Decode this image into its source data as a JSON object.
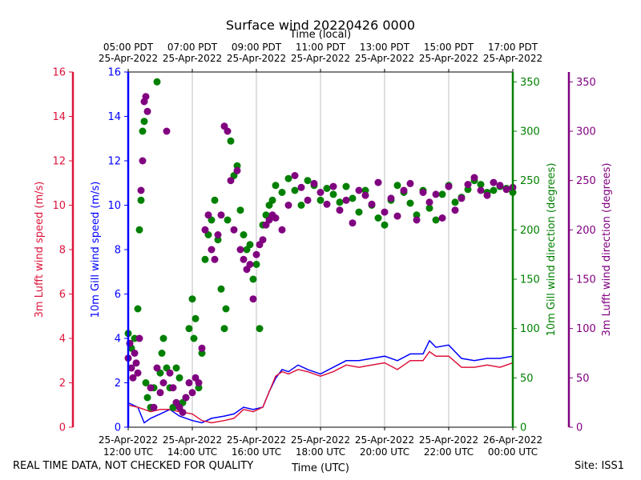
{
  "chart_data": {
    "type": "line+scatter",
    "title": "Surface wind 20220426 0000",
    "top_axis": {
      "label": "Time (local)",
      "ticks": [
        {
          "line1": "05:00 PDT",
          "line2": "25-Apr-2022"
        },
        {
          "line1": "07:00 PDT",
          "line2": "25-Apr-2022"
        },
        {
          "line1": "09:00 PDT",
          "line2": "25-Apr-2022"
        },
        {
          "line1": "11:00 PDT",
          "line2": "25-Apr-2022"
        },
        {
          "line1": "13:00 PDT",
          "line2": "25-Apr-2022"
        },
        {
          "line1": "15:00 PDT",
          "line2": "25-Apr-2022"
        },
        {
          "line1": "17:00 PDT",
          "line2": "25-Apr-2022"
        }
      ]
    },
    "bottom_axis": {
      "label": "Time (UTC)",
      "range_hours": [
        12,
        24
      ],
      "ticks": [
        {
          "line1": "25-Apr-2022",
          "line2": "12:00 UTC"
        },
        {
          "line1": "25-Apr-2022",
          "line2": "14:00 UTC"
        },
        {
          "line1": "25-Apr-2022",
          "line2": "16:00 UTC"
        },
        {
          "line1": "25-Apr-2022",
          "line2": "18:00 UTC"
        },
        {
          "line1": "25-Apr-2022",
          "line2": "20:00 UTC"
        },
        {
          "line1": "25-Apr-2022",
          "line2": "22:00 UTC"
        },
        {
          "line1": "26-Apr-2022",
          "line2": "00:00 UTC"
        }
      ]
    },
    "axes": {
      "lufft_speed": {
        "label": "3m Lufft wind speed (m/s)",
        "color": "#dc143c",
        "range": [
          0,
          16
        ],
        "ticks": [
          "0",
          "2",
          "4",
          "6",
          "8",
          "10",
          "12",
          "14",
          "16"
        ]
      },
      "gill_speed": {
        "label": "10m Gill wind speed (m/s)",
        "color": "#0000ff",
        "range": [
          0,
          16
        ],
        "ticks": [
          "0",
          "2",
          "4",
          "6",
          "8",
          "10",
          "12",
          "14",
          "16"
        ]
      },
      "gill_dir": {
        "label": "10m Gill wind direction (degrees)",
        "color": "#008000",
        "range": [
          0,
          360
        ],
        "ticks": [
          "0",
          "50",
          "100",
          "150",
          "200",
          "250",
          "300",
          "350"
        ]
      },
      "lufft_dir": {
        "label": "3m Lufft wind direction (degrees)",
        "color": "#800080",
        "range": [
          0,
          360
        ],
        "ticks": [
          "0",
          "50",
          "100",
          "150",
          "200",
          "250",
          "300",
          "350"
        ]
      }
    },
    "series": [
      {
        "name": "10m Gill wind speed",
        "axis": "gill_speed",
        "kind": "line",
        "color": "#0000ff",
        "x": [
          12.0,
          12.3,
          12.5,
          12.7,
          13.0,
          13.3,
          13.6,
          14.0,
          14.3,
          14.6,
          15.0,
          15.3,
          15.6,
          15.9,
          16.2,
          16.4,
          16.6,
          16.8,
          17.0,
          17.3,
          17.6,
          18.0,
          18.4,
          18.8,
          19.2,
          19.6,
          20.0,
          20.4,
          20.8,
          21.2,
          21.4,
          21.6,
          22.0,
          22.4,
          22.8,
          23.2,
          23.6,
          24.0
        ],
        "y": [
          1.1,
          0.9,
          0.2,
          0.4,
          0.6,
          0.8,
          0.5,
          0.3,
          0.2,
          0.4,
          0.5,
          0.6,
          0.9,
          0.8,
          0.9,
          1.6,
          2.2,
          2.6,
          2.5,
          2.8,
          2.6,
          2.4,
          2.7,
          3.0,
          3.0,
          3.1,
          3.2,
          3.0,
          3.3,
          3.3,
          3.9,
          3.6,
          3.7,
          3.1,
          3.0,
          3.1,
          3.1,
          3.2
        ]
      },
      {
        "name": "3m Lufft wind speed",
        "axis": "lufft_speed",
        "kind": "line",
        "color": "#dc143c",
        "x": [
          12.0,
          12.3,
          12.5,
          12.7,
          13.0,
          13.3,
          13.6,
          14.0,
          14.3,
          14.6,
          15.0,
          15.3,
          15.6,
          15.9,
          16.2,
          16.4,
          16.6,
          16.8,
          17.0,
          17.3,
          17.6,
          18.0,
          18.4,
          18.8,
          19.2,
          19.6,
          20.0,
          20.4,
          20.8,
          21.2,
          21.4,
          21.6,
          22.0,
          22.4,
          22.8,
          23.2,
          23.6,
          24.0
        ],
        "y": [
          1.0,
          0.9,
          0.8,
          0.7,
          0.8,
          0.8,
          0.7,
          0.6,
          0.3,
          0.2,
          0.3,
          0.4,
          0.8,
          0.7,
          0.9,
          1.6,
          2.3,
          2.5,
          2.4,
          2.6,
          2.5,
          2.3,
          2.5,
          2.8,
          2.7,
          2.8,
          2.9,
          2.6,
          3.0,
          3.0,
          3.4,
          3.2,
          3.2,
          2.7,
          2.7,
          2.8,
          2.7,
          2.9
        ]
      },
      {
        "name": "10m Gill wind direction",
        "axis": "gill_dir",
        "kind": "scatter",
        "color": "#008000",
        "x": [
          12.0,
          12.1,
          12.2,
          12.3,
          12.35,
          12.4,
          12.45,
          12.5,
          12.55,
          12.6,
          12.7,
          12.8,
          12.9,
          13.0,
          13.05,
          13.1,
          13.2,
          13.3,
          13.4,
          13.5,
          13.6,
          13.7,
          13.8,
          13.9,
          14.0,
          14.05,
          14.1,
          14.2,
          14.3,
          14.4,
          14.5,
          14.6,
          14.7,
          14.8,
          14.9,
          15.0,
          15.05,
          15.1,
          15.2,
          15.3,
          15.4,
          15.5,
          15.6,
          15.7,
          15.8,
          15.9,
          16.0,
          16.1,
          16.2,
          16.3,
          16.4,
          16.5,
          16.6,
          16.8,
          17.0,
          17.2,
          17.4,
          17.6,
          17.8,
          18.0,
          18.2,
          18.4,
          18.6,
          18.8,
          19.0,
          19.2,
          19.4,
          19.6,
          19.8,
          20.0,
          20.2,
          20.4,
          20.6,
          20.8,
          21.0,
          21.2,
          21.4,
          21.6,
          21.8,
          22.0,
          22.2,
          22.4,
          22.6,
          22.8,
          23.0,
          23.2,
          23.4,
          23.6,
          23.8,
          24.0
        ],
        "y": [
          95,
          80,
          90,
          120,
          200,
          230,
          300,
          310,
          45,
          30,
          20,
          40,
          350,
          55,
          75,
          90,
          60,
          40,
          20,
          60,
          50,
          25,
          30,
          100,
          130,
          90,
          110,
          40,
          75,
          170,
          195,
          210,
          230,
          190,
          140,
          100,
          120,
          210,
          290,
          255,
          265,
          220,
          195,
          180,
          185,
          150,
          165,
          100,
          205,
          215,
          225,
          230,
          245,
          238,
          252,
          240,
          225,
          250,
          245,
          230,
          242,
          236,
          228,
          244,
          232,
          218,
          240,
          225,
          212,
          205,
          230,
          245,
          238,
          227,
          215,
          240,
          222,
          210,
          236,
          245,
          228,
          233,
          241,
          250,
          246,
          238,
          240,
          244,
          242,
          238
        ]
      },
      {
        "name": "3m Lufft wind direction",
        "axis": "lufft_dir",
        "kind": "scatter",
        "color": "#800080",
        "x": [
          12.0,
          12.05,
          12.1,
          12.15,
          12.2,
          12.25,
          12.3,
          12.35,
          12.4,
          12.45,
          12.5,
          12.55,
          12.6,
          12.7,
          12.8,
          12.9,
          13.0,
          13.1,
          13.2,
          13.3,
          13.4,
          13.5,
          13.6,
          13.7,
          13.8,
          13.9,
          14.0,
          14.1,
          14.2,
          14.3,
          14.4,
          14.5,
          14.6,
          14.7,
          14.8,
          14.9,
          15.0,
          15.1,
          15.2,
          15.3,
          15.4,
          15.5,
          15.6,
          15.7,
          15.8,
          15.9,
          16.0,
          16.1,
          16.2,
          16.3,
          16.4,
          16.5,
          16.6,
          16.8,
          17.0,
          17.2,
          17.4,
          17.6,
          17.8,
          18.0,
          18.2,
          18.4,
          18.6,
          18.8,
          19.0,
          19.2,
          19.4,
          19.6,
          19.8,
          20.0,
          20.2,
          20.4,
          20.6,
          20.8,
          21.0,
          21.2,
          21.4,
          21.6,
          21.8,
          22.0,
          22.2,
          22.4,
          22.6,
          22.8,
          23.0,
          23.2,
          23.4,
          23.6,
          23.8,
          24.0
        ],
        "y": [
          70,
          85,
          60,
          50,
          75,
          65,
          55,
          90,
          240,
          270,
          330,
          335,
          320,
          40,
          20,
          60,
          35,
          45,
          300,
          55,
          40,
          25,
          20,
          15,
          30,
          45,
          35,
          50,
          45,
          80,
          200,
          215,
          180,
          170,
          195,
          215,
          305,
          300,
          250,
          200,
          260,
          180,
          170,
          160,
          165,
          130,
          175,
          185,
          190,
          205,
          210,
          215,
          212,
          200,
          225,
          255,
          243,
          230,
          247,
          238,
          226,
          244,
          220,
          230,
          207,
          240,
          235,
          226,
          248,
          218,
          232,
          214,
          240,
          247,
          210,
          238,
          228,
          236,
          212,
          244,
          220,
          232,
          246,
          253,
          240,
          235,
          248,
          245,
          241,
          243
        ]
      }
    ],
    "grid": "vertical"
  },
  "footer": {
    "left_note": "REAL TIME DATA, NOT CHECKED FOR QUALITY",
    "site": "Site: ISS1"
  }
}
